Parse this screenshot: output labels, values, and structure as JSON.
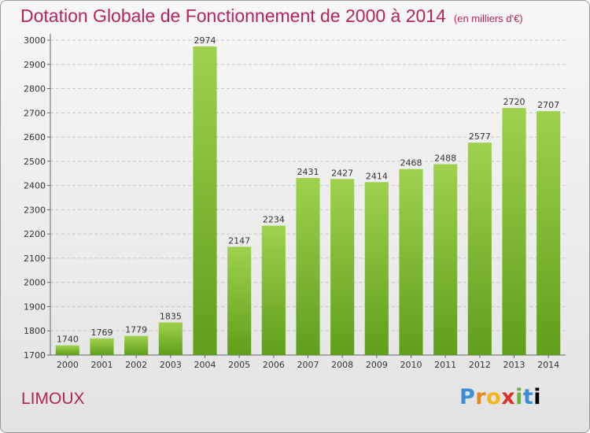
{
  "title": "Dotation Globale de Fonctionnement de 2000 à 2014",
  "subtitle": "(en milliers d'€)",
  "commune": "LIMOUX",
  "brand": "Proxiti",
  "colors": {
    "title": "#b5245c",
    "bar_light": "#9fd14e",
    "bar_dark": "#5f9f1a",
    "grid": "#c8c8c8"
  },
  "chart_data": {
    "type": "bar",
    "title": "Dotation Globale de Fonctionnement de 2000 à 2014",
    "subtitle": "(en milliers d'€)",
    "xlabel": "",
    "ylabel": "",
    "categories": [
      "2000",
      "2001",
      "2002",
      "2003",
      "2004",
      "2005",
      "2006",
      "2007",
      "2008",
      "2009",
      "2010",
      "2011",
      "2012",
      "2013",
      "2014"
    ],
    "values": [
      1740,
      1769,
      1779,
      1835,
      2974,
      2147,
      2234,
      2431,
      2427,
      2414,
      2468,
      2488,
      2577,
      2720,
      2707
    ],
    "ylim": [
      1700,
      3000
    ],
    "yticks": [
      1700,
      1800,
      1900,
      2000,
      2100,
      2200,
      2300,
      2400,
      2500,
      2600,
      2700,
      2800,
      2900,
      3000
    ],
    "grid": true,
    "legend": "none"
  }
}
